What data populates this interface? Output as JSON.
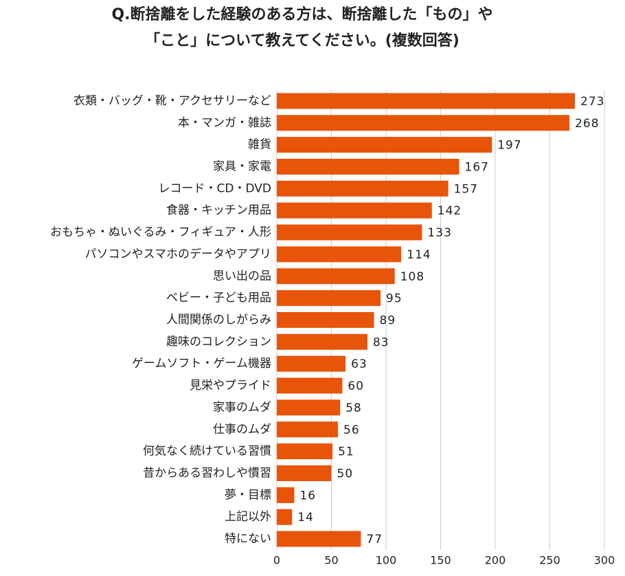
{
  "chart_data": {
    "type": "hbar",
    "title": [
      "Q.断捨離をした経験のある方は、断捨離した「もの」や",
      "「こと」について教えてください。(複数回答)"
    ],
    "categories": [
      "衣類・バッグ・靴・アクセサリーなど",
      "本・マンガ・雑誌",
      "雑貨",
      "家具・家電",
      "レコード・CD・DVD",
      "食器・キッチン用品",
      "おもちゃ・ぬいぐるみ・フィギュア・人形",
      "パソコンやスマホのデータやアプリ",
      "思い出の品",
      "ベビー・子ども用品",
      "人間関係のしがらみ",
      "趣味のコレクション",
      "ゲームソフト・ゲーム機器",
      "見栄やプライド",
      "家事のムダ",
      "仕事のムダ",
      "何気なく続けている習慣",
      "昔からある習わしや慣習",
      "夢・目標",
      "上記以外",
      "特にない"
    ],
    "values": [
      273,
      268,
      197,
      167,
      157,
      142,
      133,
      114,
      108,
      95,
      89,
      83,
      63,
      60,
      58,
      56,
      51,
      50,
      16,
      14,
      77
    ],
    "color": "#e8540a",
    "xlim": [
      0,
      300
    ],
    "xticks": [
      0,
      50,
      100,
      150,
      200,
      250,
      300
    ],
    "grid": true
  }
}
